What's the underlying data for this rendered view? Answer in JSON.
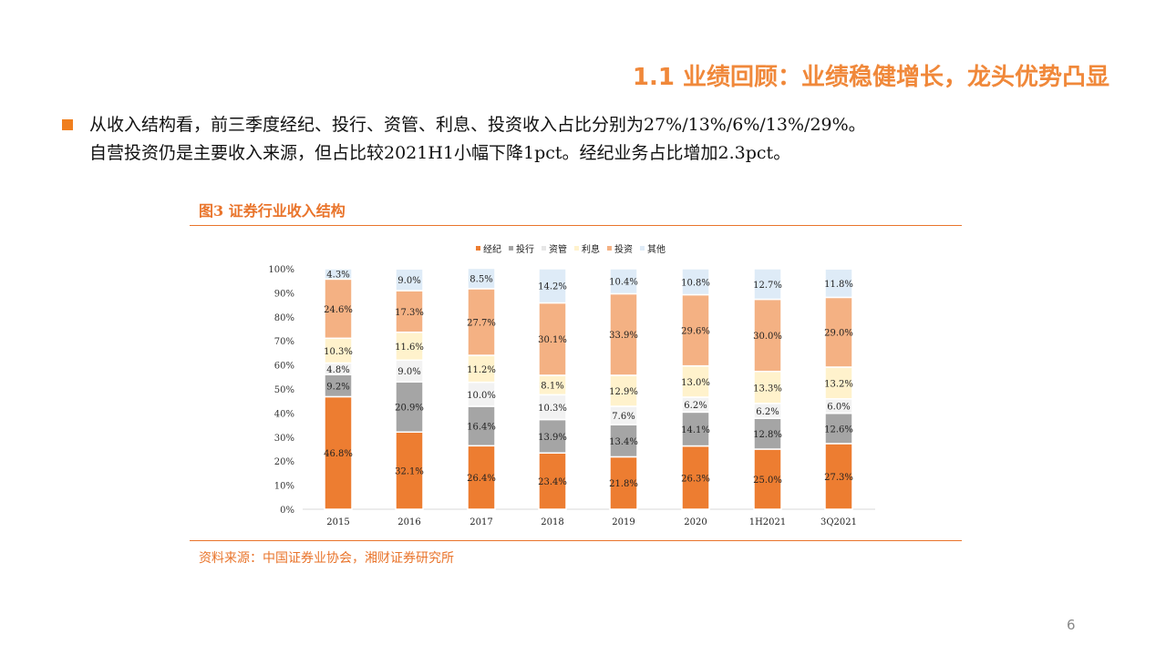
{
  "header": {
    "title": "1.1 业绩回顾：业绩稳健增长，龙头优势凸显"
  },
  "body": {
    "line1": "从收入结构看，前三季度经纪、投行、资管、利息、投资收入占比分别为27%/13%/6%/13%/29%。",
    "line2": "自营投资仍是主要收入来源，但占比较2021H1小幅下降1pct。经纪业务占比增加2.3pct。"
  },
  "figure": {
    "title": "图3 证券行业收入结构",
    "source": "资料来源：中国证券业协会，湘财证券研究所"
  },
  "page_number": "6",
  "chart_data": {
    "type": "bar",
    "stacked": true,
    "categories": [
      "2015",
      "2016",
      "2017",
      "2018",
      "2019",
      "2020",
      "1H2021",
      "3Q2021"
    ],
    "ylim": [
      0,
      100
    ],
    "yticks": [
      "0%",
      "10%",
      "20%",
      "30%",
      "40%",
      "50%",
      "60%",
      "70%",
      "80%",
      "90%",
      "100%"
    ],
    "legend_position": "top",
    "grid": false,
    "series": [
      {
        "name": "经纪",
        "color": "#ED7D31",
        "values": [
          46.8,
          32.1,
          26.4,
          23.4,
          21.8,
          26.3,
          25.0,
          27.3
        ]
      },
      {
        "name": "投行",
        "color": "#A5A5A5",
        "values": [
          9.2,
          20.9,
          16.4,
          13.9,
          13.4,
          14.1,
          12.8,
          12.6
        ]
      },
      {
        "name": "资管",
        "color": "#F2F2F2",
        "values": [
          4.8,
          9.0,
          10.0,
          10.3,
          7.6,
          6.2,
          6.2,
          6.0
        ]
      },
      {
        "name": "利息",
        "color": "#FFF2CC",
        "values": [
          10.3,
          11.6,
          11.2,
          8.1,
          12.9,
          13.0,
          13.3,
          13.2
        ]
      },
      {
        "name": "投资",
        "color": "#F4B183",
        "values": [
          24.6,
          17.3,
          27.7,
          30.1,
          33.9,
          29.6,
          30.0,
          29.0
        ]
      },
      {
        "name": "其他",
        "color": "#DEEBF7",
        "values": [
          4.3,
          9.0,
          8.5,
          14.2,
          10.4,
          10.8,
          12.7,
          11.8
        ]
      }
    ]
  }
}
